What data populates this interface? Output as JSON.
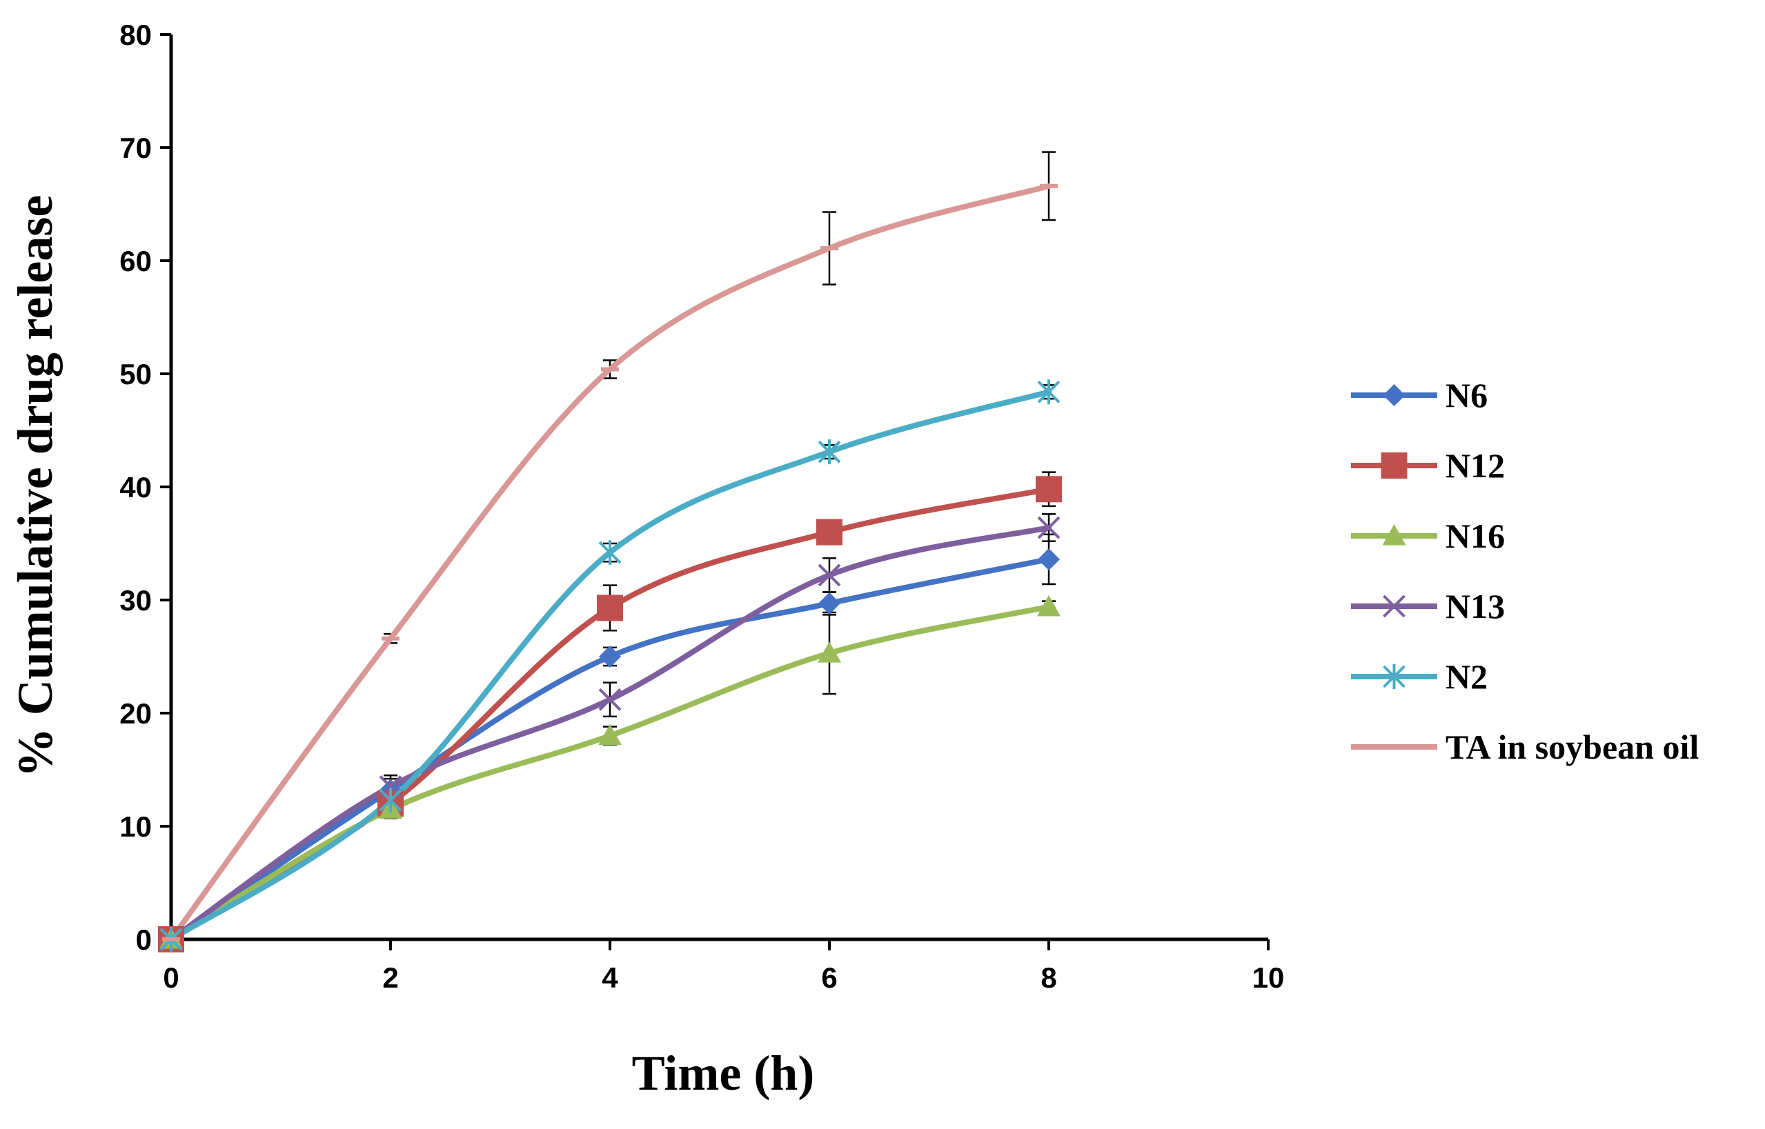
{
  "chart_data": {
    "type": "line",
    "title": "",
    "xlabel": "Time (h)",
    "ylabel": "% Cumulative drug release",
    "xlim": [
      0,
      10
    ],
    "ylim": [
      0,
      80
    ],
    "xticks": [
      0,
      2,
      4,
      6,
      8,
      10
    ],
    "yticks": [
      0,
      10,
      20,
      30,
      40,
      50,
      60,
      70,
      80
    ],
    "grid": false,
    "legend_position": "right",
    "x": [
      0,
      2,
      4,
      6,
      8
    ],
    "series": [
      {
        "name": "N6",
        "color": "#4472C4",
        "marker": "diamond",
        "values": [
          0,
          13.2,
          25.0,
          29.7,
          33.6
        ],
        "errors": [
          0,
          1.0,
          0.8,
          1.0,
          2.2
        ]
      },
      {
        "name": "N12",
        "color": "#C0504D",
        "marker": "square",
        "values": [
          0,
          12.0,
          29.3,
          36.0,
          39.8
        ],
        "errors": [
          0,
          1.0,
          2.0,
          0.8,
          1.5
        ]
      },
      {
        "name": "N16",
        "color": "#9BBB59",
        "marker": "triangle",
        "values": [
          0,
          11.5,
          18.0,
          25.3,
          29.4
        ],
        "errors": [
          0,
          0.8,
          0.8,
          3.6,
          0.5
        ]
      },
      {
        "name": "N13",
        "color": "#7E5F9E",
        "marker": "x",
        "values": [
          0,
          13.5,
          21.2,
          32.2,
          36.4
        ],
        "errors": [
          0,
          1.0,
          1.5,
          1.5,
          1.2
        ]
      },
      {
        "name": "N2",
        "color": "#4BACC6",
        "marker": "star",
        "values": [
          0,
          12.3,
          34.2,
          43.1,
          48.4
        ],
        "errors": [
          0,
          0.8,
          0.8,
          0.6,
          0.6
        ]
      },
      {
        "name": "TA in soybean oil",
        "color": "#D99795",
        "marker": "dash",
        "values": [
          0,
          26.6,
          50.4,
          61.1,
          66.6
        ],
        "errors": [
          0,
          0.4,
          0.8,
          3.2,
          3.0
        ]
      }
    ]
  }
}
